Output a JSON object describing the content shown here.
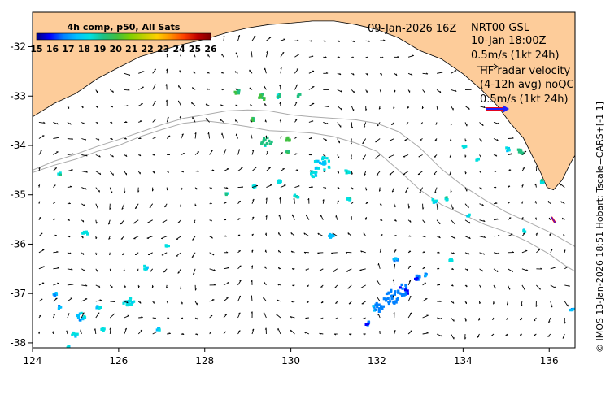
{
  "chart_data": {
    "type": "map",
    "title": "09-Jan-2026 16Z",
    "xlim": [
      124,
      136.6
    ],
    "ylim": [
      -38.1,
      -31.3
    ],
    "x_ticks": [
      124,
      126,
      128,
      130,
      132,
      134,
      136
    ],
    "y_ticks": [
      -32,
      -33,
      -34,
      -35,
      -36,
      -37,
      -38
    ],
    "colorbar": {
      "title": "4h comp, p50, All Sats",
      "ticks": [
        15,
        16,
        17,
        18,
        19,
        20,
        21,
        22,
        23,
        24,
        25,
        26
      ],
      "range": [
        15,
        26
      ]
    },
    "annotations": {
      "date": "09-Jan-2026 16Z",
      "product": "NRT00 GSL",
      "valid": "10-Jan 18:00Z",
      "scale1": "0.5m/s (1kt 24h)",
      "hf_line1": "HF radar velocity",
      "hf_line2": "(4-12h avg) noQC",
      "hf_scale": "0.5m/s (1kt 24h)"
    },
    "side_note": "© IMOS 13-Jan-2026 18:51 Hobart; Tscale=CARS+[-1 1]",
    "land_color": "#fdcc9a",
    "colormap": [
      "#000080",
      "#0000ff",
      "#0080ff",
      "#00c0ff",
      "#00e0e0",
      "#20c080",
      "#40c040",
      "#80d000",
      "#c0d000",
      "#ffd000",
      "#ff9000",
      "#ff4000",
      "#c00000",
      "#800000"
    ],
    "coast": [
      [
        124,
        -33.42
      ],
      [
        124.5,
        -33.15
      ],
      [
        125,
        -32.95
      ],
      [
        125.5,
        -32.65
      ],
      [
        126,
        -32.42
      ],
      [
        126.5,
        -32.2
      ],
      [
        127,
        -32.07
      ],
      [
        127.5,
        -31.95
      ],
      [
        128,
        -31.85
      ],
      [
        128.5,
        -31.72
      ],
      [
        129,
        -31.62
      ],
      [
        129.5,
        -31.55
      ],
      [
        130,
        -31.52
      ],
      [
        130.5,
        -31.48
      ],
      [
        131,
        -31.48
      ],
      [
        131.5,
        -31.55
      ],
      [
        132,
        -31.65
      ],
      [
        132.5,
        -31.82
      ],
      [
        133,
        -32.08
      ],
      [
        133.5,
        -32.25
      ],
      [
        134,
        -32.55
      ],
      [
        134.4,
        -32.85
      ],
      [
        134.8,
        -33.2
      ],
      [
        135.1,
        -33.55
      ],
      [
        135.4,
        -33.85
      ],
      [
        135.6,
        -34.2
      ],
      [
        135.8,
        -34.55
      ],
      [
        135.95,
        -34.85
      ],
      [
        136.1,
        -34.9
      ],
      [
        136.3,
        -34.7
      ],
      [
        136.5,
        -34.35
      ],
      [
        136.6,
        -34.2
      ]
    ],
    "shelf_200m": [
      [
        124,
        -34.5
      ],
      [
        124.5,
        -34.32
      ],
      [
        125,
        -34.18
      ],
      [
        125.5,
        -34.02
      ],
      [
        126,
        -33.88
      ],
      [
        126.5,
        -33.73
      ],
      [
        127,
        -33.58
      ],
      [
        127.5,
        -33.45
      ],
      [
        128,
        -33.38
      ],
      [
        128.5,
        -33.3
      ],
      [
        129,
        -33.28
      ],
      [
        129.5,
        -33.3
      ],
      [
        130,
        -33.38
      ],
      [
        130.5,
        -33.42
      ],
      [
        131,
        -33.45
      ],
      [
        131.5,
        -33.48
      ],
      [
        132,
        -33.55
      ],
      [
        132.5,
        -33.72
      ],
      [
        133,
        -34.05
      ],
      [
        133.5,
        -34.48
      ],
      [
        134,
        -34.82
      ],
      [
        134.5,
        -35.1
      ],
      [
        135,
        -35.35
      ],
      [
        135.5,
        -35.55
      ],
      [
        136,
        -35.75
      ],
      [
        136.4,
        -35.95
      ],
      [
        136.6,
        -36.05
      ]
    ],
    "slope_2000m": [
      [
        124,
        -34.55
      ],
      [
        124.5,
        -34.4
      ],
      [
        125,
        -34.28
      ],
      [
        125.5,
        -34.12
      ],
      [
        126,
        -34.0
      ],
      [
        126.5,
        -33.82
      ],
      [
        127,
        -33.68
      ],
      [
        127.5,
        -33.55
      ],
      [
        128,
        -33.5
      ],
      [
        128.5,
        -33.55
      ],
      [
        129,
        -33.62
      ],
      [
        129.5,
        -33.7
      ],
      [
        130,
        -33.72
      ],
      [
        130.5,
        -33.75
      ],
      [
        131,
        -33.82
      ],
      [
        131.5,
        -33.95
      ],
      [
        132,
        -34.12
      ],
      [
        132.5,
        -34.5
      ],
      [
        133,
        -34.9
      ],
      [
        133.5,
        -35.2
      ],
      [
        134,
        -35.4
      ],
      [
        134.5,
        -35.6
      ],
      [
        135,
        -35.75
      ],
      [
        135.5,
        -35.95
      ],
      [
        136,
        -36.2
      ],
      [
        136.4,
        -36.45
      ],
      [
        136.6,
        -36.55
      ]
    ],
    "sst_patches": [
      {
        "lon": 129.4,
        "lat": -33.9,
        "v": 19.3,
        "r": 0.1
      },
      {
        "lon": 129.3,
        "lat": -33.0,
        "v": 19.8,
        "r": 0.07
      },
      {
        "lon": 128.7,
        "lat": -32.88,
        "v": 19.6,
        "r": 0.06
      },
      {
        "lon": 129.7,
        "lat": -32.98,
        "v": 19.2,
        "r": 0.04
      },
      {
        "lon": 130.15,
        "lat": -32.95,
        "v": 19.5,
        "r": 0.03
      },
      {
        "lon": 129.9,
        "lat": -33.85,
        "v": 20.0,
        "r": 0.04
      },
      {
        "lon": 129.1,
        "lat": -33.45,
        "v": 19.9,
        "r": 0.03
      },
      {
        "lon": 129.9,
        "lat": -34.1,
        "v": 19.6,
        "r": 0.03
      },
      {
        "lon": 130.7,
        "lat": -34.35,
        "v": 18.2,
        "r": 0.15
      },
      {
        "lon": 130.5,
        "lat": -34.55,
        "v": 18.0,
        "r": 0.06
      },
      {
        "lon": 131.3,
        "lat": -34.5,
        "v": 18.6,
        "r": 0.05
      },
      {
        "lon": 129.1,
        "lat": -34.8,
        "v": 18.5,
        "r": 0.04
      },
      {
        "lon": 129.7,
        "lat": -34.7,
        "v": 18.4,
        "r": 0.04
      },
      {
        "lon": 130.1,
        "lat": -35.0,
        "v": 18.6,
        "r": 0.04
      },
      {
        "lon": 131.3,
        "lat": -35.05,
        "v": 18.6,
        "r": 0.04
      },
      {
        "lon": 128.5,
        "lat": -34.95,
        "v": 18.8,
        "r": 0.03
      },
      {
        "lon": 130.9,
        "lat": -35.8,
        "v": 17.8,
        "r": 0.05
      },
      {
        "lon": 132.4,
        "lat": -36.3,
        "v": 17.4,
        "r": 0.04
      },
      {
        "lon": 132.3,
        "lat": -37.05,
        "v": 17.0,
        "r": 0.15
      },
      {
        "lon": 132.6,
        "lat": -36.9,
        "v": 16.9,
        "r": 0.12
      },
      {
        "lon": 132.0,
        "lat": -37.25,
        "v": 17.2,
        "r": 0.1
      },
      {
        "lon": 132.9,
        "lat": -36.65,
        "v": 16.8,
        "r": 0.05
      },
      {
        "lon": 131.75,
        "lat": -37.58,
        "v": 16.6,
        "r": 0.04
      },
      {
        "lon": 126.2,
        "lat": -37.15,
        "v": 18.4,
        "r": 0.1
      },
      {
        "lon": 125.1,
        "lat": -37.45,
        "v": 17.8,
        "r": 0.08
      },
      {
        "lon": 124.95,
        "lat": -37.8,
        "v": 18.5,
        "r": 0.05
      },
      {
        "lon": 124.5,
        "lat": -37.0,
        "v": 17.3,
        "r": 0.04
      },
      {
        "lon": 124.6,
        "lat": -37.25,
        "v": 17.6,
        "r": 0.04
      },
      {
        "lon": 125.2,
        "lat": -35.75,
        "v": 18.6,
        "r": 0.05
      },
      {
        "lon": 126.6,
        "lat": -36.45,
        "v": 18.4,
        "r": 0.04
      },
      {
        "lon": 124.6,
        "lat": -34.55,
        "v": 18.8,
        "r": 0.03
      },
      {
        "lon": 125.5,
        "lat": -37.25,
        "v": 18.2,
        "r": 0.04
      },
      {
        "lon": 127.1,
        "lat": -36.0,
        "v": 18.2,
        "r": 0.03
      },
      {
        "lon": 124.8,
        "lat": -38.05,
        "v": 18.3,
        "r": 0.03
      },
      {
        "lon": 126.9,
        "lat": -37.7,
        "v": 18.4,
        "r": 0.03
      },
      {
        "lon": 125.6,
        "lat": -37.7,
        "v": 18.3,
        "r": 0.03
      },
      {
        "lon": 135.3,
        "lat": -34.1,
        "v": 19.4,
        "r": 0.06
      },
      {
        "lon": 135.0,
        "lat": -34.05,
        "v": 18.0,
        "r": 0.04
      },
      {
        "lon": 135.8,
        "lat": -34.7,
        "v": 18.6,
        "r": 0.04
      },
      {
        "lon": 134.3,
        "lat": -34.25,
        "v": 18.6,
        "r": 0.03
      },
      {
        "lon": 134.0,
        "lat": -34.0,
        "v": 18.4,
        "r": 0.03
      },
      {
        "lon": 133.3,
        "lat": -35.1,
        "v": 18.4,
        "r": 0.04
      },
      {
        "lon": 133.6,
        "lat": -35.05,
        "v": 18.6,
        "r": 0.03
      },
      {
        "lon": 134.1,
        "lat": -35.4,
        "v": 18.5,
        "r": 0.03
      },
      {
        "lon": 136.5,
        "lat": -37.3,
        "v": 17.2,
        "r": 0.03
      },
      {
        "lon": 133.7,
        "lat": -36.3,
        "v": 18.6,
        "r": 0.03
      },
      {
        "lon": 135.4,
        "lat": -35.7,
        "v": 18.4,
        "r": 0.03
      },
      {
        "lon": 133.1,
        "lat": -36.6,
        "v": 17.2,
        "r": 0.03
      }
    ],
    "hf_radar": {
      "lon": 136.05,
      "lat": -35.45,
      "u": 0.12,
      "v": -0.18
    }
  }
}
